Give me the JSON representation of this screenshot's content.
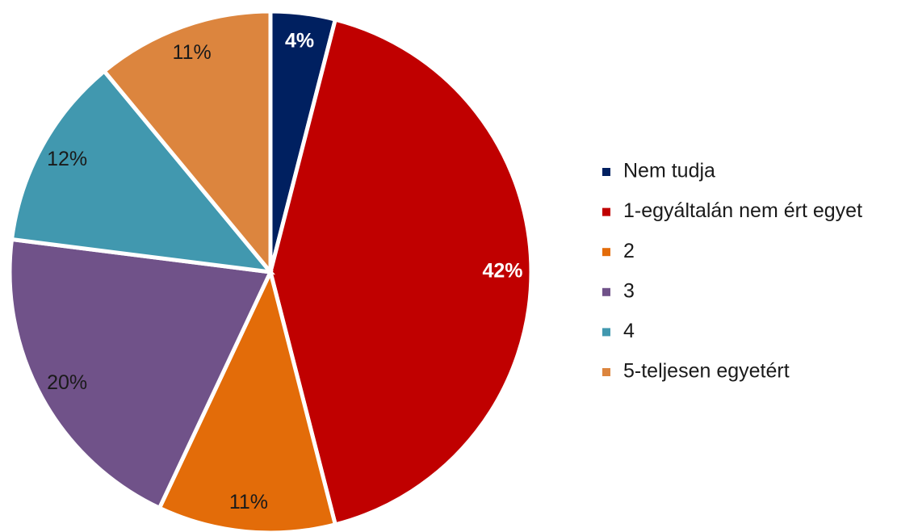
{
  "chart_data": {
    "type": "pie",
    "categories": [
      "Nem tudja",
      "1-egyáltalán nem ért egyet",
      "2",
      "3",
      "4",
      "5-teljesen egyetért"
    ],
    "values": [
      4,
      42,
      11,
      20,
      12,
      11
    ],
    "value_labels": [
      "4%",
      "42%",
      "11%",
      "20%",
      "12%",
      "11%"
    ],
    "colors": [
      "#002060",
      "#c00000",
      "#e36c09",
      "#705289",
      "#4198af",
      "#dc853e"
    ],
    "legend": "right"
  }
}
